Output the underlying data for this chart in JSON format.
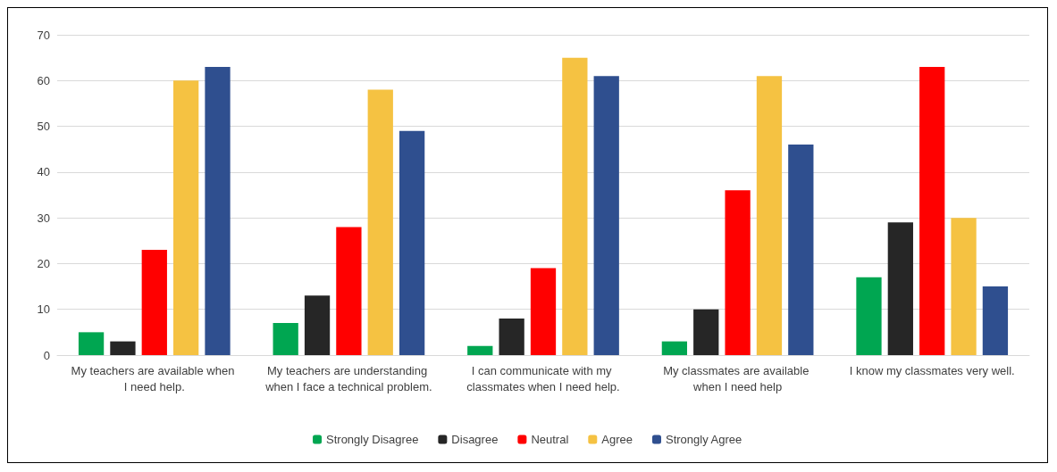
{
  "chart_data": {
    "type": "bar",
    "categories": [
      "My teachers are available when I need help.",
      "My teachers are understanding when I face a technical problem.",
      "I can communicate with my classmates when I need help.",
      "My classmates are available when I need help",
      "I know my classmates very well."
    ],
    "series": [
      {
        "name": "Strongly Disagree",
        "color": "#00a651",
        "values": [
          5,
          7,
          2,
          3,
          17
        ]
      },
      {
        "name": "Disagree",
        "color": "#262626",
        "values": [
          3,
          13,
          8,
          10,
          29
        ]
      },
      {
        "name": "Neutral",
        "color": "#ff0000",
        "values": [
          23,
          28,
          19,
          36,
          63
        ]
      },
      {
        "name": "Agree",
        "color": "#f5c242",
        "values": [
          60,
          58,
          65,
          61,
          30
        ]
      },
      {
        "name": "Strongly Agree",
        "color": "#2f4f8f",
        "values": [
          63,
          49,
          61,
          46,
          15
        ]
      }
    ],
    "ylim": [
      0,
      70
    ],
    "yticks": [
      0,
      10,
      20,
      30,
      40,
      50,
      60,
      70
    ],
    "grid": "y",
    "legend": "bottom"
  }
}
